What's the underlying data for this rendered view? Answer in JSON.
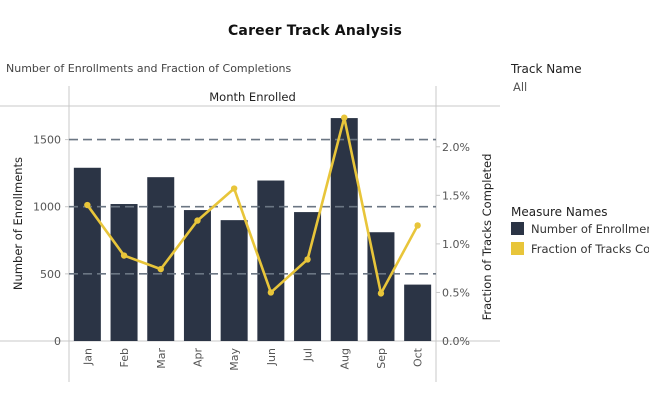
{
  "dashboard": {
    "title": "Career Track Analysis",
    "subtitle": "Number of Enrollments and Fraction of Completions"
  },
  "filter": {
    "title": "Track Name",
    "value": "All"
  },
  "legend": {
    "title": "Measure Names",
    "items": [
      {
        "label": "Number of Enrollments",
        "color": "#2b3445"
      },
      {
        "label": "Fraction of Tracks Completed",
        "color": "#e8c53a"
      }
    ]
  },
  "chart_data": {
    "type": "bar",
    "title": "",
    "header": "Month Enrolled",
    "categories": [
      "Jan",
      "Feb",
      "Mar",
      "Apr",
      "May",
      "Jun",
      "Jul",
      "Aug",
      "Sep",
      "Oct"
    ],
    "series": [
      {
        "name": "Number of Enrollments",
        "type": "bar",
        "axis": "left",
        "color": "#2b3445",
        "values": [
          1290,
          1020,
          1220,
          975,
          900,
          1195,
          960,
          1660,
          810,
          420
        ]
      },
      {
        "name": "Fraction of Tracks Completed",
        "type": "line",
        "axis": "right",
        "color": "#e8c53a",
        "values": [
          1.4,
          0.88,
          0.74,
          1.24,
          1.57,
          0.5,
          0.84,
          2.3,
          0.49,
          1.19
        ]
      }
    ],
    "ylabel": "Number of Enrollments",
    "ylim": [
      0,
      1750
    ],
    "yticks": [
      {
        "value": 0,
        "label": "0"
      },
      {
        "value": 500,
        "label": "500"
      },
      {
        "value": 1000,
        "label": "1000"
      },
      {
        "value": 1500,
        "label": "1500"
      }
    ],
    "y2label": "Fraction of Tracks Completed",
    "y2lim": [
      0,
      2.42
    ],
    "y2ticks": [
      {
        "value": 0,
        "label": "0.0%"
      },
      {
        "value": 0.5,
        "label": "0.5%"
      },
      {
        "value": 1.0,
        "label": "1.0%"
      },
      {
        "value": 1.5,
        "label": "1.5%"
      },
      {
        "value": 2.0,
        "label": "2.0%"
      }
    ],
    "reference_lines": [
      500,
      1000,
      1500
    ],
    "grid": false,
    "legend_position": "right"
  }
}
